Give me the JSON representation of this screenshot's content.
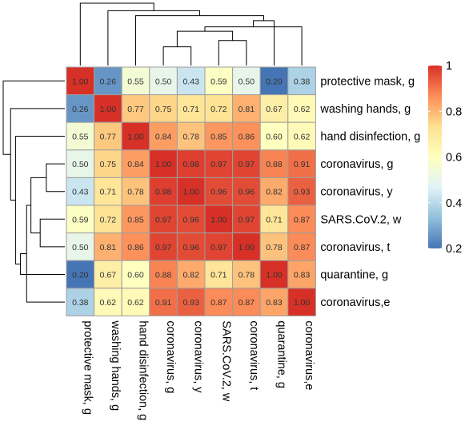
{
  "chart_data": {
    "type": "heatmap",
    "title": "",
    "labels": [
      "protective mask, g",
      "washing hands, g",
      "hand disinfection, g",
      "coronavirus, g",
      "coronavirus, y",
      "SARS.CoV.2, w",
      "coronavirus, t",
      "quarantine, g",
      "coronavirus,e"
    ],
    "matrix": [
      [
        1.0,
        0.26,
        0.55,
        0.5,
        0.43,
        0.59,
        0.5,
        0.2,
        0.38
      ],
      [
        0.26,
        1.0,
        0.77,
        0.75,
        0.71,
        0.72,
        0.81,
        0.67,
        0.62
      ],
      [
        0.55,
        0.77,
        1.0,
        0.84,
        0.78,
        0.85,
        0.86,
        0.6,
        0.62
      ],
      [
        0.5,
        0.75,
        0.84,
        1.0,
        0.98,
        0.97,
        0.97,
        0.88,
        0.91
      ],
      [
        0.43,
        0.71,
        0.78,
        0.98,
        1.0,
        0.96,
        0.96,
        0.82,
        0.93
      ],
      [
        0.59,
        0.72,
        0.85,
        0.97,
        0.96,
        1.0,
        0.97,
        0.71,
        0.87
      ],
      [
        0.5,
        0.81,
        0.86,
        0.97,
        0.96,
        0.97,
        1.0,
        0.78,
        0.87
      ],
      [
        0.2,
        0.67,
        0.6,
        0.88,
        0.82,
        0.71,
        0.78,
        1.0,
        0.83
      ],
      [
        0.38,
        0.62,
        0.62,
        0.91,
        0.93,
        0.87,
        0.87,
        0.83,
        1.0
      ]
    ],
    "value_range": [
      0.2,
      1.0
    ],
    "colorbar": {
      "ticks": [
        1,
        0.8,
        0.6,
        0.4,
        0.2
      ],
      "palette": [
        "#4575B4",
        "#91BFDB",
        "#E0F3F8",
        "#FFFFBF",
        "#FEE090",
        "#FC8D59",
        "#D73027"
      ]
    },
    "cell_border_color": "#9e9e9e",
    "dendrograms": "row and column (hierarchical clustering)"
  }
}
